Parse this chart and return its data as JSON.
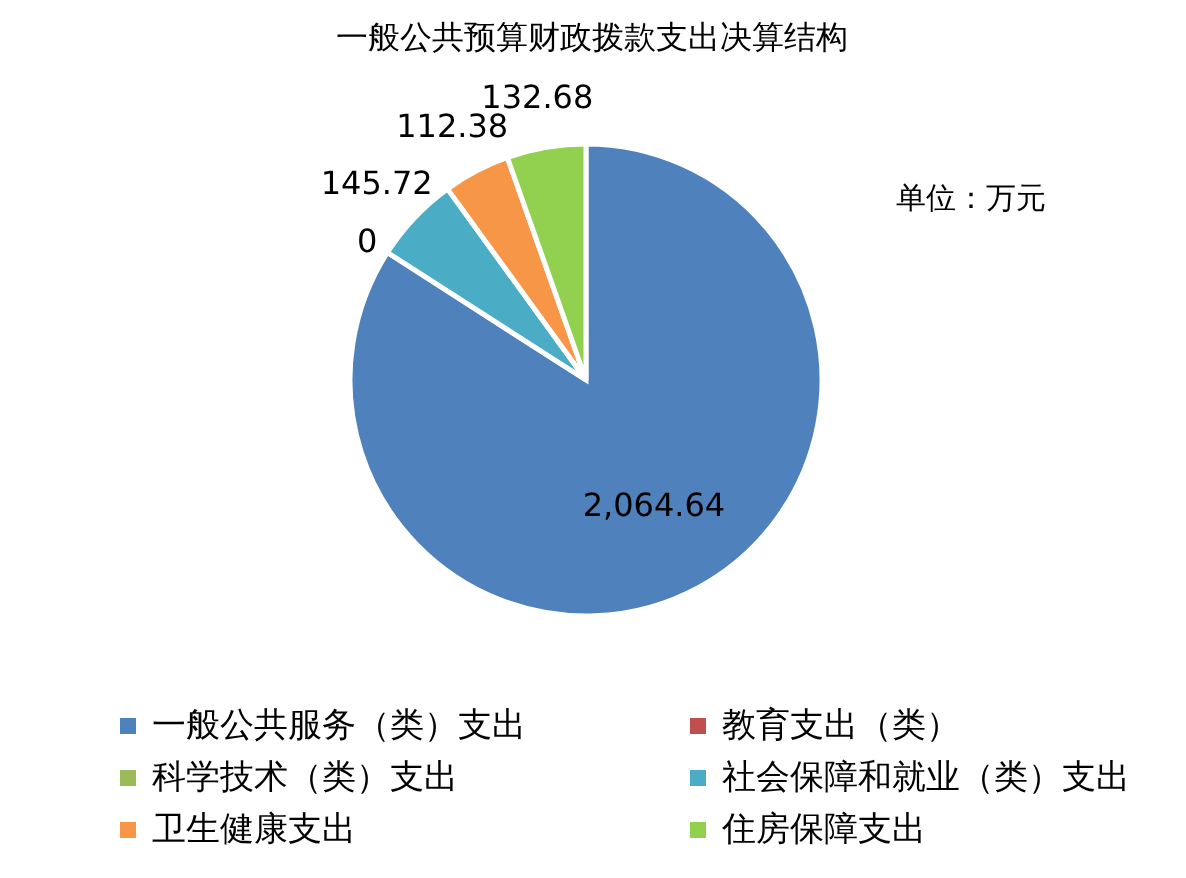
{
  "chart_data": {
    "type": "pie",
    "title": "一般公共预算财政拨款支出决算结构",
    "categories": [
      "一般公共服务（类）支出",
      "教育支出（类）",
      "科学技术（类）支出",
      "社会保障和就业（类）支出",
      "卫生健康支出",
      "住房保障支出"
    ],
    "values": [
      2064.64,
      0,
      null,
      145.72,
      112.38,
      132.68
    ],
    "colors": [
      "#4f81bd",
      "#c0504d",
      "#9bbb59",
      "#4bacc6",
      "#f79646",
      "#92d050"
    ],
    "value_labels": [
      "2,064.64",
      "0",
      null,
      "145.72",
      "112.38",
      "132.68"
    ],
    "legend": "bottom",
    "annotations": [
      "单位：万元"
    ]
  }
}
